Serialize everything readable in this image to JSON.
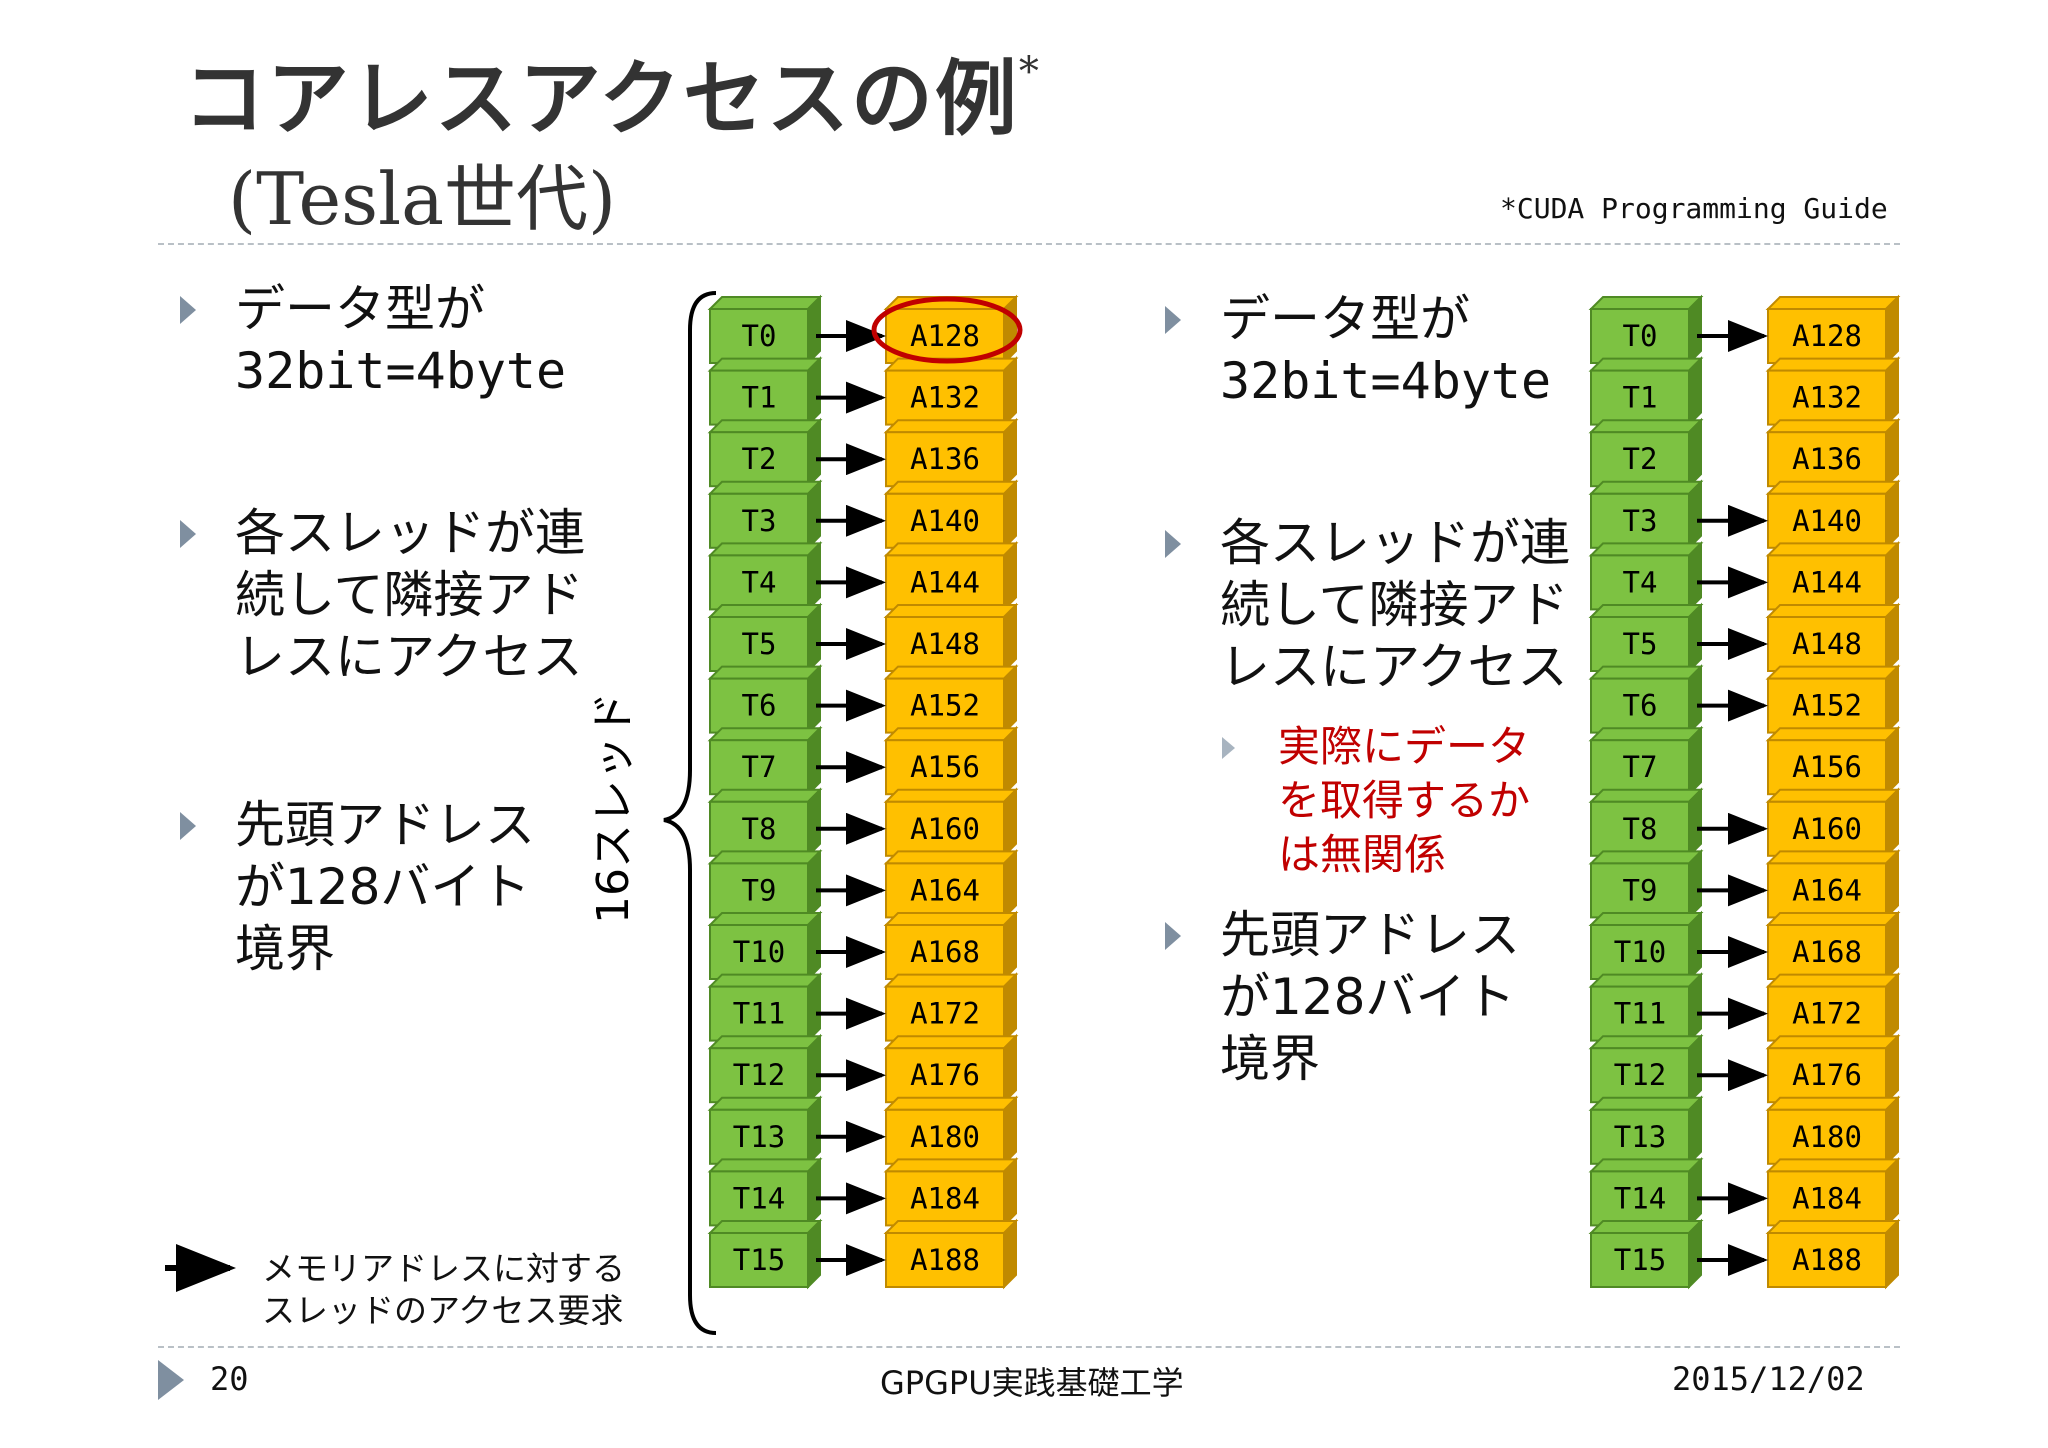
{
  "title": {
    "main": "コアレスアクセスの例",
    "marker": "*",
    "sub": "(Tesla世代)"
  },
  "reference": "*CUDA Programming Guide",
  "left_panel": {
    "bullets": [
      {
        "lines": [
          "データ型が",
          "32bit=4byte"
        ]
      },
      {
        "lines": [
          "各スレッドが連",
          "続して隣接アド",
          "レスにアクセス"
        ]
      },
      {
        "lines": [
          "先頭アドレス",
          "が128バイト",
          "境界"
        ]
      }
    ]
  },
  "right_panel": {
    "bullets": [
      {
        "lines": [
          "データ型が",
          "32bit=4byte"
        ]
      },
      {
        "lines": [
          "各スレッドが連",
          "続して隣接アド",
          "レスにアクセス"
        ]
      },
      {
        "lines": [
          "先頭アドレス",
          "が128バイト",
          "境界"
        ]
      }
    ],
    "sub_bullet": {
      "lines": [
        "実際にデータ",
        "を取得するか",
        "は無関係"
      ]
    }
  },
  "brace_label": "16スレッド",
  "threads": [
    "T0",
    "T1",
    "T2",
    "T3",
    "T4",
    "T5",
    "T6",
    "T7",
    "T8",
    "T9",
    "T10",
    "T11",
    "T12",
    "T13",
    "T14",
    "T15"
  ],
  "addresses": [
    "A128",
    "A132",
    "A136",
    "A140",
    "A144",
    "A148",
    "A152",
    "A156",
    "A160",
    "A164",
    "A168",
    "A172",
    "A176",
    "A180",
    "A184",
    "A188"
  ],
  "left_arrows": [
    true,
    true,
    true,
    true,
    true,
    true,
    true,
    true,
    true,
    true,
    true,
    true,
    true,
    true,
    true,
    true
  ],
  "right_arrows": [
    true,
    false,
    false,
    true,
    true,
    true,
    true,
    false,
    true,
    true,
    true,
    true,
    true,
    false,
    true,
    true
  ],
  "highlighted_address": 0,
  "legend": {
    "lines": [
      "メモリアドレスに対する",
      "スレッドのアクセス要求"
    ]
  },
  "footer": {
    "page": "20",
    "course": "GPGPU実践基礎工学",
    "date": "2015/12/02"
  },
  "colors": {
    "thread_face": "#7dc242",
    "thread_dark": "#4f8a24",
    "address_face": "#ffc000",
    "address_dark": "#c08a00",
    "highlight": "#c00000",
    "sub_text": "#c00000",
    "bullet": "#7f8fa0"
  }
}
